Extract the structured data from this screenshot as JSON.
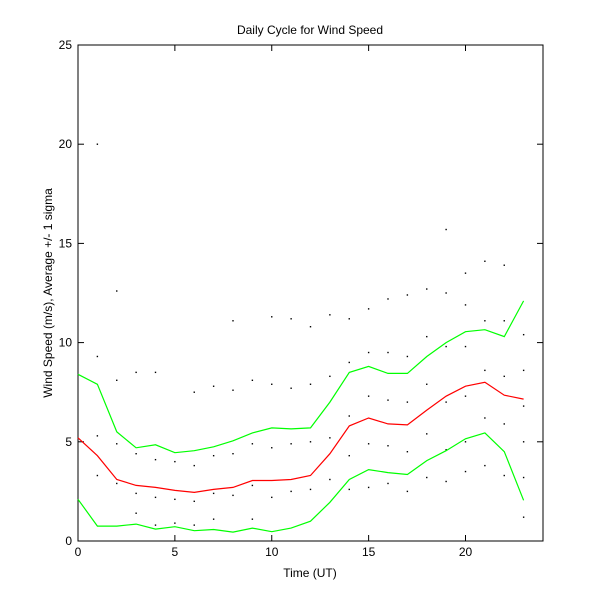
{
  "chart_data": {
    "type": "line",
    "title": "Daily Cycle for Wind Speed",
    "xlabel": "Time (UT)",
    "ylabel": "Wind Speed (m/s), Average +/- 1 sigma",
    "xlim": [
      0,
      24
    ],
    "ylim": [
      0,
      25
    ],
    "xticks": [
      0,
      5,
      10,
      15,
      20
    ],
    "yticks": [
      0,
      5,
      10,
      15,
      20,
      25
    ],
    "grid": false,
    "x": [
      0,
      1,
      2,
      3,
      4,
      5,
      6,
      7,
      8,
      9,
      10,
      11,
      12,
      13,
      14,
      15,
      16,
      17,
      18,
      19,
      20,
      21,
      22,
      23
    ],
    "series": [
      {
        "name": "average",
        "color": "#ff0000",
        "values": [
          5.2,
          4.3,
          3.1,
          2.8,
          2.7,
          2.55,
          2.45,
          2.6,
          2.7,
          3.05,
          3.05,
          3.1,
          3.3,
          4.4,
          5.8,
          6.2,
          5.9,
          5.85,
          6.6,
          7.3,
          7.8,
          8.0,
          7.35,
          7.15
        ]
      },
      {
        "name": "average + 1 sigma",
        "color": "#00ff00",
        "values": [
          8.4,
          7.9,
          5.5,
          4.7,
          4.85,
          4.45,
          4.55,
          4.75,
          5.05,
          5.45,
          5.7,
          5.65,
          5.7,
          7.0,
          8.5,
          8.8,
          8.45,
          8.45,
          9.3,
          10.0,
          10.55,
          10.65,
          10.3,
          12.1
        ]
      },
      {
        "name": "average - 1 sigma",
        "color": "#00ff00",
        "values": [
          2.1,
          0.75,
          0.75,
          0.85,
          0.6,
          0.72,
          0.52,
          0.58,
          0.45,
          0.65,
          0.47,
          0.65,
          1.0,
          1.95,
          3.1,
          3.6,
          3.45,
          3.35,
          4.05,
          4.55,
          5.15,
          5.45,
          4.5,
          2.05
        ]
      }
    ],
    "scatter_points": [
      [
        1,
        20.0
      ],
      [
        1,
        9.3
      ],
      [
        1,
        5.3
      ],
      [
        1,
        3.3
      ],
      [
        2,
        12.6
      ],
      [
        2,
        8.1
      ],
      [
        2,
        4.9
      ],
      [
        2,
        2.9
      ],
      [
        3,
        8.5
      ],
      [
        3,
        4.4
      ],
      [
        3,
        2.4
      ],
      [
        3,
        1.4
      ],
      [
        4,
        8.5
      ],
      [
        4,
        4.1
      ],
      [
        4,
        2.2
      ],
      [
        4,
        0.8
      ],
      [
        5,
        4.0
      ],
      [
        5,
        2.1
      ],
      [
        5,
        0.9
      ],
      [
        6,
        7.5
      ],
      [
        6,
        3.8
      ],
      [
        6,
        2.0
      ],
      [
        6,
        0.8
      ],
      [
        7,
        7.8
      ],
      [
        7,
        4.3
      ],
      [
        7,
        2.4
      ],
      [
        7,
        1.1
      ],
      [
        8,
        11.1
      ],
      [
        8,
        7.6
      ],
      [
        8,
        4.4
      ],
      [
        8,
        2.3
      ],
      [
        9,
        8.1
      ],
      [
        9,
        4.9
      ],
      [
        9,
        2.8
      ],
      [
        9,
        1.1
      ],
      [
        10,
        11.3
      ],
      [
        10,
        7.9
      ],
      [
        10,
        4.7
      ],
      [
        10,
        2.2
      ],
      [
        11,
        11.2
      ],
      [
        11,
        7.7
      ],
      [
        11,
        4.9
      ],
      [
        11,
        2.5
      ],
      [
        12,
        10.8
      ],
      [
        12,
        7.9
      ],
      [
        12,
        5.0
      ],
      [
        12,
        2.6
      ],
      [
        13,
        11.4
      ],
      [
        13,
        8.3
      ],
      [
        13,
        5.2
      ],
      [
        13,
        3.1
      ],
      [
        14,
        11.2
      ],
      [
        14,
        9.0
      ],
      [
        14,
        6.3
      ],
      [
        14,
        4.3
      ],
      [
        14,
        2.6
      ],
      [
        15,
        11.7
      ],
      [
        15,
        9.5
      ],
      [
        15,
        7.3
      ],
      [
        15,
        4.9
      ],
      [
        15,
        2.7
      ],
      [
        16,
        12.2
      ],
      [
        16,
        9.5
      ],
      [
        16,
        7.1
      ],
      [
        16,
        4.8
      ],
      [
        16,
        2.9
      ],
      [
        17,
        12.4
      ],
      [
        17,
        9.3
      ],
      [
        17,
        7.0
      ],
      [
        17,
        4.5
      ],
      [
        17,
        2.5
      ],
      [
        18,
        12.7
      ],
      [
        18,
        10.3
      ],
      [
        18,
        7.9
      ],
      [
        18,
        5.4
      ],
      [
        18,
        3.2
      ],
      [
        19,
        15.7
      ],
      [
        19,
        12.5
      ],
      [
        19,
        9.8
      ],
      [
        19,
        7.0
      ],
      [
        19,
        4.6
      ],
      [
        19,
        3.0
      ],
      [
        20,
        13.5
      ],
      [
        20,
        11.9
      ],
      [
        20,
        9.8
      ],
      [
        20,
        7.3
      ],
      [
        20,
        5.0
      ],
      [
        20,
        3.5
      ],
      [
        21,
        14.1
      ],
      [
        21,
        11.1
      ],
      [
        21,
        8.6
      ],
      [
        21,
        6.2
      ],
      [
        21,
        3.8
      ],
      [
        22,
        13.9
      ],
      [
        22,
        11.1
      ],
      [
        22,
        8.3
      ],
      [
        22,
        5.9
      ],
      [
        22,
        3.3
      ],
      [
        23,
        10.4
      ],
      [
        23,
        8.6
      ],
      [
        23,
        6.8
      ],
      [
        23,
        5.0
      ],
      [
        23,
        3.2
      ],
      [
        23,
        1.2
      ]
    ]
  }
}
